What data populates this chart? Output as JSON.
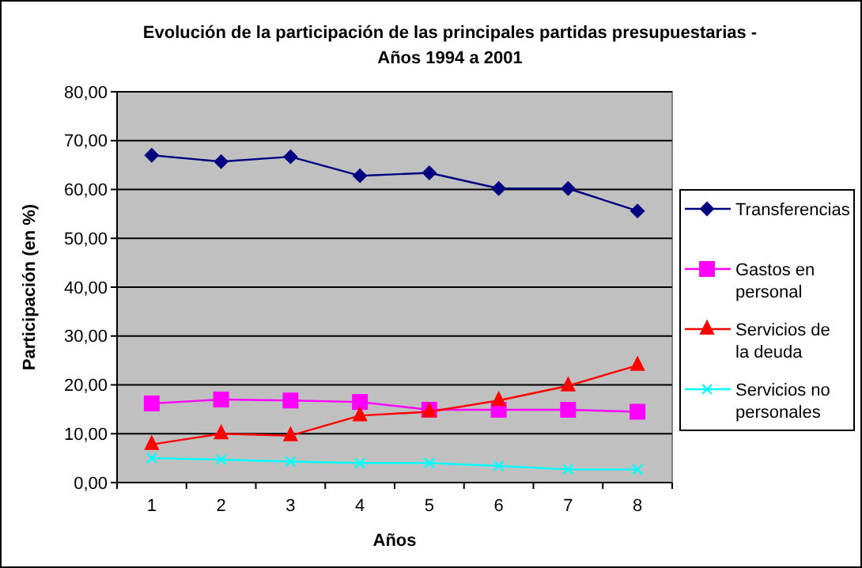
{
  "chart_data": {
    "type": "line",
    "title": "Evolución de la participación de las principales partidas presupuestarias - Años 1994 a 2001",
    "xlabel": "Años",
    "ylabel": "Participación (en %)",
    "categories": [
      "1",
      "2",
      "3",
      "4",
      "5",
      "6",
      "7",
      "8"
    ],
    "series": [
      {
        "name": "Transferencias",
        "color": "#000080",
        "marker": "diamond",
        "values": [
          67.0,
          65.7,
          66.7,
          62.8,
          63.4,
          60.2,
          60.2,
          55.6
        ]
      },
      {
        "name": "Gastos en personal",
        "color": "#ff00ff",
        "marker": "square",
        "values": [
          16.2,
          17.0,
          16.8,
          16.5,
          14.9,
          14.9,
          14.9,
          14.5
        ]
      },
      {
        "name": "Servicios de la deuda",
        "color": "#ff0000",
        "marker": "triangle",
        "values": [
          7.8,
          10.0,
          9.6,
          13.7,
          14.5,
          16.8,
          19.8,
          24.0
        ]
      },
      {
        "name": "Servicios no personales",
        "color": "#00ffff",
        "marker": "cross",
        "values": [
          5.0,
          4.7,
          4.3,
          4.0,
          4.0,
          3.4,
          2.7,
          2.7
        ]
      }
    ],
    "ylim": [
      0,
      80
    ],
    "yticks": [
      {
        "value": 0,
        "label": "0,00"
      },
      {
        "value": 10,
        "label": "10,00"
      },
      {
        "value": 20,
        "label": "20,00"
      },
      {
        "value": 30,
        "label": "30,00"
      },
      {
        "value": 40,
        "label": "40,00"
      },
      {
        "value": 50,
        "label": "50,00"
      },
      {
        "value": 60,
        "label": "60,00"
      },
      {
        "value": 70,
        "label": "70,00"
      },
      {
        "value": 80,
        "label": "80,00"
      }
    ],
    "grid": "y",
    "legend": "right",
    "line_style": "solid"
  }
}
